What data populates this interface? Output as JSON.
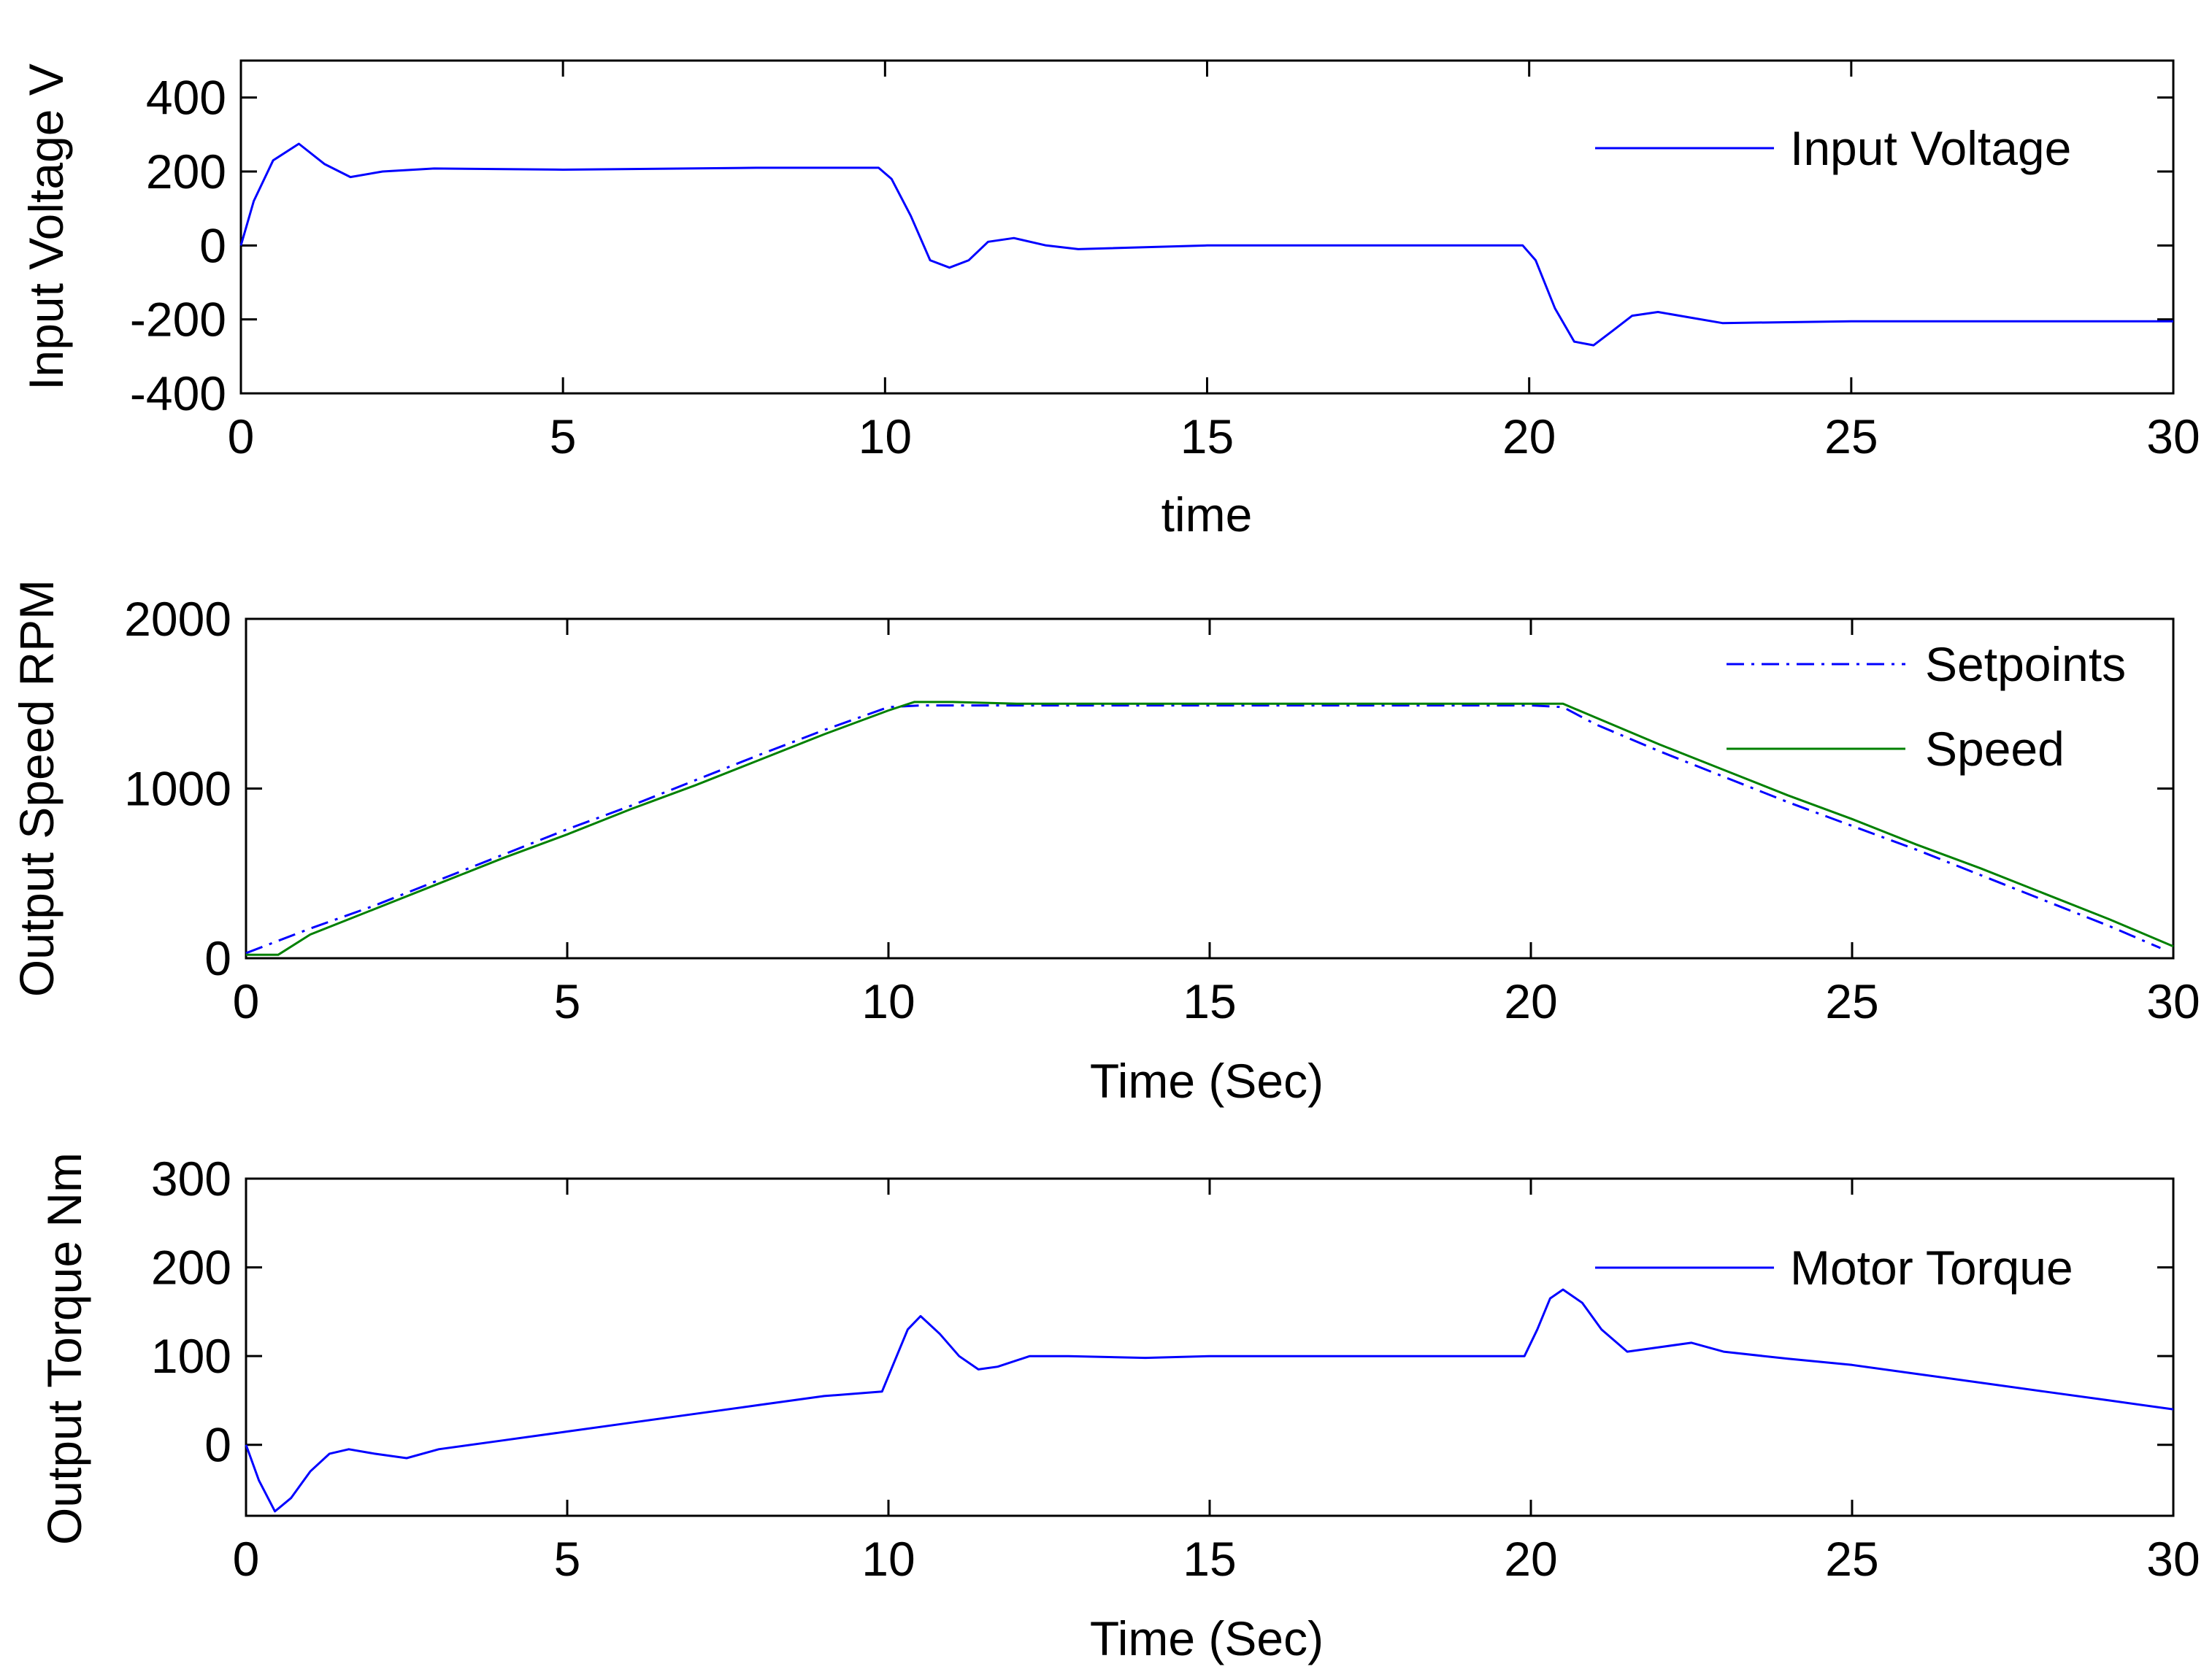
{
  "chart_data": [
    {
      "type": "line",
      "title": "",
      "xlabel": "time",
      "ylabel": "Input Voltage V",
      "xlim": [
        0,
        30
      ],
      "ylim": [
        -400,
        500
      ],
      "xticks": [
        0,
        5,
        10,
        15,
        20,
        25,
        30
      ],
      "yticks": [
        -400,
        -200,
        0,
        200,
        400
      ],
      "legend_position": "top-right",
      "series": [
        {
          "name": "Input Voltage",
          "color": "#0000ff",
          "style": "solid",
          "x": [
            0,
            0.2,
            0.5,
            0.9,
            1.3,
            1.7,
            2.2,
            3,
            5,
            8,
            9.9,
            10.1,
            10.4,
            10.7,
            11.0,
            11.3,
            11.6,
            12.0,
            12.5,
            13,
            15,
            18,
            19.9,
            20.1,
            20.4,
            20.7,
            21.0,
            21.3,
            21.6,
            22.0,
            22.5,
            23,
            25,
            28,
            30
          ],
          "y": [
            0,
            120,
            230,
            275,
            220,
            185,
            200,
            208,
            205,
            210,
            210,
            180,
            80,
            -40,
            -60,
            -40,
            10,
            20,
            0,
            -10,
            0,
            0,
            0,
            -40,
            -170,
            -260,
            -270,
            -230,
            -190,
            -180,
            -195,
            -210,
            -205,
            -205,
            -205
          ]
        }
      ]
    },
    {
      "type": "line",
      "title": "",
      "xlabel": "Time (Sec)",
      "ylabel": "Output Speed RPM",
      "xlim": [
        0,
        30
      ],
      "ylim": [
        0,
        2000
      ],
      "xticks": [
        0,
        5,
        10,
        15,
        20,
        25,
        30
      ],
      "yticks": [
        0,
        1000,
        2000
      ],
      "legend_position": "top-right",
      "series": [
        {
          "name": "Setpoints",
          "color": "#0000ff",
          "style": "dash-dot",
          "x": [
            0,
            1,
            2,
            3,
            4,
            5,
            6,
            7,
            8,
            9,
            10,
            10.5,
            11,
            12,
            13,
            14,
            15,
            16,
            17,
            18,
            19,
            20,
            20.5,
            21,
            22,
            23,
            24,
            25,
            26,
            27,
            28,
            29,
            29.8
          ],
          "y": [
            30,
            175,
            310,
            460,
            610,
            760,
            900,
            1050,
            1200,
            1345,
            1480,
            1490,
            1490,
            1490,
            1490,
            1490,
            1490,
            1490,
            1490,
            1490,
            1490,
            1490,
            1480,
            1380,
            1220,
            1070,
            920,
            780,
            640,
            490,
            340,
            190,
            60
          ]
        },
        {
          "name": "Speed",
          "color": "#008000",
          "style": "solid",
          "x": [
            0,
            0.5,
            1,
            2,
            3,
            4,
            5,
            6,
            7,
            8,
            9,
            10,
            10.4,
            11,
            12,
            13,
            14,
            15,
            16,
            17,
            18,
            19,
            20,
            20.5,
            21,
            22,
            23,
            24,
            25,
            26,
            27,
            28,
            29,
            30
          ],
          "y": [
            20,
            20,
            140,
            290,
            440,
            590,
            730,
            880,
            1020,
            1170,
            1320,
            1460,
            1510,
            1510,
            1500,
            1500,
            1500,
            1500,
            1500,
            1500,
            1500,
            1500,
            1500,
            1500,
            1420,
            1260,
            1110,
            960,
            820,
            670,
            530,
            380,
            230,
            70
          ]
        }
      ]
    },
    {
      "type": "line",
      "title": "",
      "xlabel": "Time (Sec)",
      "ylabel": "Output Torque Nm",
      "xlim": [
        0,
        30
      ],
      "ylim": [
        -80,
        300
      ],
      "xticks": [
        0,
        5,
        10,
        15,
        20,
        25,
        30
      ],
      "yticks": [
        0,
        100,
        200,
        300
      ],
      "legend_position": "top-right",
      "series": [
        {
          "name": "Motor Torque",
          "color": "#0000ff",
          "style": "solid",
          "x": [
            0,
            0.2,
            0.45,
            0.7,
            1.0,
            1.3,
            1.6,
            2.0,
            2.5,
            3,
            4,
            5,
            6,
            7,
            8,
            9,
            9.9,
            10.1,
            10.3,
            10.5,
            10.8,
            11.1,
            11.4,
            11.7,
            12.2,
            12.8,
            14,
            15,
            16,
            18,
            19.9,
            20.1,
            20.3,
            20.5,
            20.8,
            21.1,
            21.5,
            22.0,
            22.5,
            23,
            24,
            25,
            26,
            27,
            28,
            29,
            30
          ],
          "y": [
            0,
            -40,
            -75,
            -60,
            -30,
            -10,
            -5,
            -10,
            -15,
            -5,
            5,
            15,
            25,
            35,
            45,
            55,
            60,
            95,
            130,
            145,
            125,
            100,
            85,
            88,
            100,
            100,
            98,
            100,
            100,
            100,
            100,
            130,
            165,
            175,
            160,
            130,
            105,
            110,
            115,
            105,
            97,
            90,
            80,
            70,
            60,
            50,
            40
          ]
        }
      ]
    }
  ]
}
